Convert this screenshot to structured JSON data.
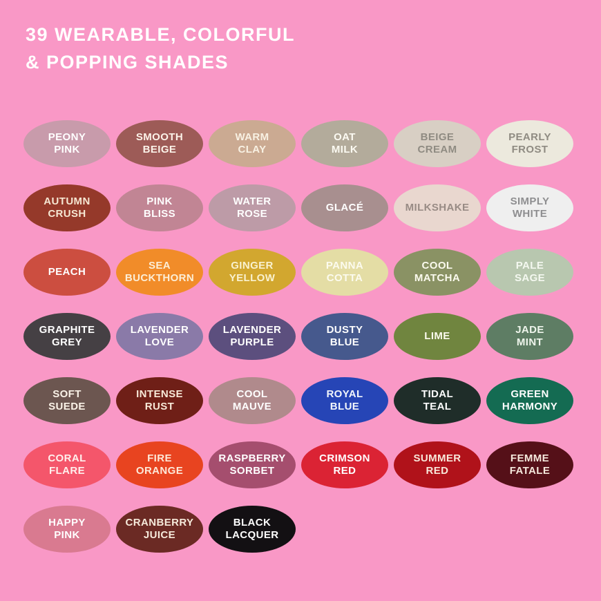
{
  "background_color": "#F998C6",
  "title": {
    "lines": [
      "39 WEARABLE, COLORFUL",
      "& POPPING SHADES"
    ],
    "color": "#FFFFFF"
  },
  "shades": [
    {
      "name": "peony-pink",
      "label": "PEONY\nPINK",
      "fill": "#C89BAB",
      "text_color": "#FFFFFF"
    },
    {
      "name": "smooth-beige",
      "label": "SMOOTH\nBEIGE",
      "fill": "#9D5B57",
      "text_color": "#FCF3E9"
    },
    {
      "name": "warm-clay",
      "label": "WARM\nCLAY",
      "fill": "#CBAA92",
      "text_color": "#F8F1E3"
    },
    {
      "name": "oat-milk",
      "label": "OAT\nMILK",
      "fill": "#B3AB9B",
      "text_color": "#FCFAF2"
    },
    {
      "name": "beige-cream",
      "label": "BEIGE\nCREAM",
      "fill": "#D8CFC4",
      "text_color": "#8F8B82"
    },
    {
      "name": "pearly-frost",
      "label": "PEARLY\nFROST",
      "fill": "#ECE9DD",
      "text_color": "#8F8B82"
    },
    {
      "name": "autumn-crush",
      "label": "AUTUMN\nCRUSH",
      "fill": "#95392A",
      "text_color": "#F6E7D3"
    },
    {
      "name": "pink-bliss",
      "label": "PINK\nBLISS",
      "fill": "#C18594",
      "text_color": "#FFFFFF"
    },
    {
      "name": "water-rose",
      "label": "WATER\nROSE",
      "fill": "#BD9BA7",
      "text_color": "#FFFFFF"
    },
    {
      "name": "glace",
      "label": "GLACÉ",
      "fill": "#A88F8F",
      "text_color": "#FFFFFF"
    },
    {
      "name": "milkshake",
      "label": "MILKSHAKE",
      "fill": "#E9D7CF",
      "text_color": "#988B85"
    },
    {
      "name": "simply-white",
      "label": "SIMPLY\nWHITE",
      "fill": "#EFEFEF",
      "text_color": "#8E8E90"
    },
    {
      "name": "peach",
      "label": "PEACH",
      "fill": "#CC4E40",
      "text_color": "#FFFFFF"
    },
    {
      "name": "sea-buckthorn",
      "label": "SEA\nBUCKTHORN",
      "fill": "#F18C29",
      "text_color": "#FCEED6"
    },
    {
      "name": "ginger-yellow",
      "label": "GINGER\nYELLOW",
      "fill": "#D2A72F",
      "text_color": "#F9F1CF"
    },
    {
      "name": "panna-cotta",
      "label": "PANNA\nCOTTA",
      "fill": "#E4DDA5",
      "text_color": "#FCFBEF"
    },
    {
      "name": "cool-matcha",
      "label": "COOL\nMATCHA",
      "fill": "#8A9264",
      "text_color": "#FBFAEE"
    },
    {
      "name": "pale-sage",
      "label": "PALE\nSAGE",
      "fill": "#B8C7AF",
      "text_color": "#F4F8F0"
    },
    {
      "name": "graphite-grey",
      "label": "GRAPHITE\nGREY",
      "fill": "#454044",
      "text_color": "#FFFFFF"
    },
    {
      "name": "lavender-love",
      "label": "LAVENDER\nLOVE",
      "fill": "#8A7AA8",
      "text_color": "#FFFFFF"
    },
    {
      "name": "lavender-purple",
      "label": "LAVENDER\nPURPLE",
      "fill": "#5C4F7E",
      "text_color": "#FFFFFF"
    },
    {
      "name": "dusty-blue",
      "label": "DUSTY\nBLUE",
      "fill": "#46598D",
      "text_color": "#FFFFFF"
    },
    {
      "name": "lime",
      "label": "LIME",
      "fill": "#70853F",
      "text_color": "#FBFAEE"
    },
    {
      "name": "jade-mint",
      "label": "JADE\nMINT",
      "fill": "#5E7D64",
      "text_color": "#EFF5EC"
    },
    {
      "name": "soft-suede",
      "label": "SOFT\nSUEDE",
      "fill": "#6C5650",
      "text_color": "#FBF3E8"
    },
    {
      "name": "intense-rust",
      "label": "INTENSE\nRUST",
      "fill": "#6F1F17",
      "text_color": "#F8E9D8"
    },
    {
      "name": "cool-mauve",
      "label": "COOL\nMAUVE",
      "fill": "#B08A8C",
      "text_color": "#FFFFFF"
    },
    {
      "name": "royal-blue",
      "label": "ROYAL\nBLUE",
      "fill": "#2645B6",
      "text_color": "#F2F6FB"
    },
    {
      "name": "tidal-teal",
      "label": "TIDAL\nTEAL",
      "fill": "#1F2D29",
      "text_color": "#FFFFFF"
    },
    {
      "name": "green-harmony",
      "label": "GREEN\nHARMONY",
      "fill": "#146B52",
      "text_color": "#FFFFFF"
    },
    {
      "name": "coral-flare",
      "label": "CORAL\nFLARE",
      "fill": "#F4566B",
      "text_color": "#FFF0EC"
    },
    {
      "name": "fire-orange",
      "label": "FIRE\nORANGE",
      "fill": "#E84420",
      "text_color": "#FDE9D9"
    },
    {
      "name": "raspberry-sorbet",
      "label": "RASPBERRY\nSORBET",
      "fill": "#A54E6E",
      "text_color": "#FFFFFF"
    },
    {
      "name": "crimson-red",
      "label": "CRIMSON\nRED",
      "fill": "#DB2334",
      "text_color": "#FFFFFF"
    },
    {
      "name": "summer-red",
      "label": "SUMMER\nRED",
      "fill": "#B0121A",
      "text_color": "#F8E8DA"
    },
    {
      "name": "femme-fatale",
      "label": "FEMME\nFATALE",
      "fill": "#551018",
      "text_color": "#F5E8DC"
    },
    {
      "name": "happy-pink",
      "label": "HAPPY\nPINK",
      "fill": "#D97A90",
      "text_color": "#FFFFFF"
    },
    {
      "name": "cranberry-juice",
      "label": "CRANBERRY\nJUICE",
      "fill": "#6B2A24",
      "text_color": "#F6EADB"
    },
    {
      "name": "black-lacquer",
      "label": "BLACK\nLACQUER",
      "fill": "#131013",
      "text_color": "#FFFFFF"
    }
  ]
}
